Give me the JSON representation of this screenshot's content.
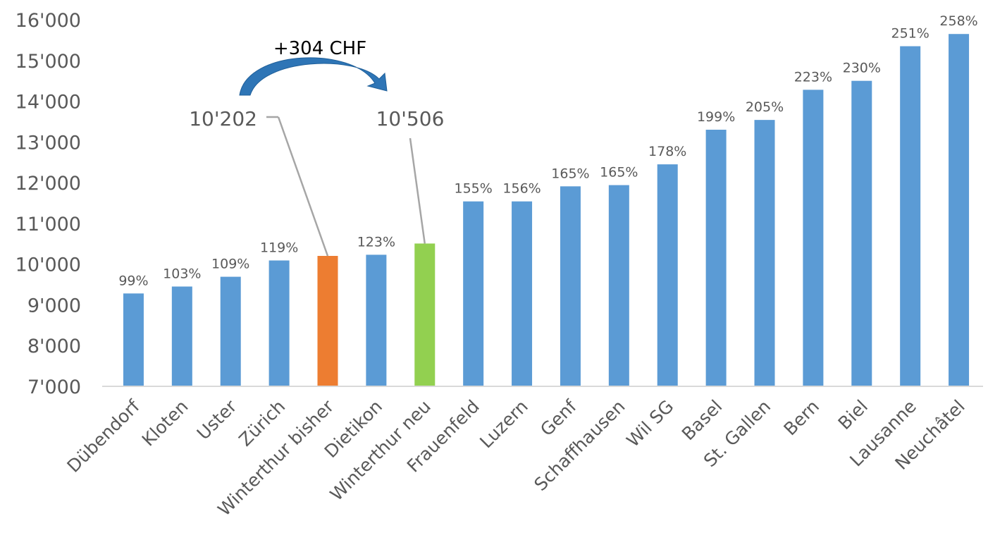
{
  "chart_data": {
    "type": "bar",
    "categories": [
      "Dübendorf",
      "Kloten",
      "Uster",
      "Zürich",
      "Winterthur bisher",
      "Dietikon",
      "Winterthur neu",
      "Frauenfeld",
      "Luzern",
      "Genf",
      "Schaffhausen",
      "Wil SG",
      "Basel",
      "St. Gallen",
      "Bern",
      "Biel",
      "Lausanne",
      "Neuchâtel"
    ],
    "values": [
      9280,
      9450,
      9690,
      10090,
      10202,
      10230,
      10506,
      11540,
      11540,
      11910,
      11940,
      12450,
      13300,
      13540,
      14280,
      14500,
      15350,
      15650
    ],
    "data_labels": [
      "99%",
      "103%",
      "109%",
      "119%",
      "",
      "123%",
      "",
      "155%",
      "156%",
      "165%",
      "165%",
      "178%",
      "199%",
      "205%",
      "223%",
      "230%",
      "251%",
      "258%"
    ],
    "bar_colors": [
      "#5b9bd5",
      "#5b9bd5",
      "#5b9bd5",
      "#5b9bd5",
      "#ed7d31",
      "#5b9bd5",
      "#92d050",
      "#5b9bd5",
      "#5b9bd5",
      "#5b9bd5",
      "#5b9bd5",
      "#5b9bd5",
      "#5b9bd5",
      "#5b9bd5",
      "#5b9bd5",
      "#5b9bd5",
      "#5b9bd5",
      "#5b9bd5"
    ],
    "ylim": [
      7000,
      16000
    ],
    "yticks": [
      7000,
      8000,
      9000,
      10000,
      11000,
      12000,
      13000,
      14000,
      15000,
      16000
    ],
    "ytick_labels": [
      "7'000",
      "8'000",
      "9'000",
      "10'000",
      "11'000",
      "12'000",
      "13'000",
      "14'000",
      "15'000",
      "16'000"
    ],
    "title": "",
    "xlabel": "",
    "ylabel": "",
    "grid": false,
    "annotations": {
      "callouts": [
        {
          "label": "10'202",
          "target_index": 4
        },
        {
          "label": "10'506",
          "target_index": 6
        }
      ],
      "arrow": {
        "label": "+304 CHF",
        "from_index": 4,
        "to_index": 6,
        "color": "#2e75b6"
      }
    }
  }
}
